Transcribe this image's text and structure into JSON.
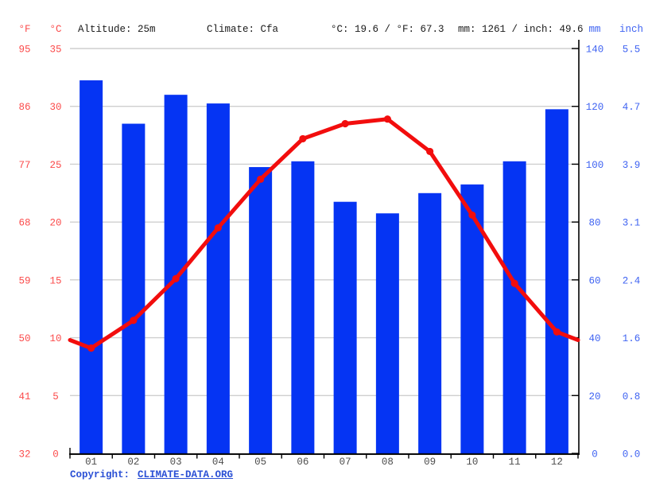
{
  "header": {
    "f_unit": "°F",
    "c_unit": "°C",
    "altitude": "Altitude: 25m",
    "climate": "Climate: Cfa",
    "temp_summary": "°C: 19.6 / °F: 67.3",
    "precip_summary": "mm: 1261 / inch: 49.6",
    "mm_unit": "mm",
    "inch_unit": "inch"
  },
  "footer": {
    "copyright_label": "Copyright:",
    "link_text": "CLIMATE-DATA.ORG",
    "link_color": "#2b50d5"
  },
  "chart_data": {
    "type": "climograph (bar + line)",
    "title": "",
    "categories": [
      "01",
      "02",
      "03",
      "04",
      "05",
      "06",
      "07",
      "08",
      "09",
      "10",
      "11",
      "12"
    ],
    "series": [
      {
        "name": "precipitation",
        "type": "bar",
        "unit": "mm",
        "values": [
          129,
          114,
          124,
          121,
          99,
          101,
          87,
          83,
          90,
          93,
          101,
          119
        ],
        "color": "#0534f3"
      },
      {
        "name": "temperature",
        "type": "line",
        "unit": "°C",
        "values": [
          9.1,
          11.5,
          15.1,
          19.5,
          23.7,
          27.2,
          28.5,
          28.9,
          26.1,
          20.6,
          14.7,
          10.5
        ],
        "color": "#f20d0d"
      }
    ],
    "left_axis": {
      "units": [
        "°F",
        "°C"
      ],
      "f_ticks": [
        "95",
        "86",
        "77",
        "68",
        "59",
        "50",
        "41",
        "32"
      ],
      "c_ticks": [
        "35",
        "30",
        "25",
        "20",
        "15",
        "10",
        "5",
        "0"
      ],
      "range_c": [
        0,
        35
      ],
      "label_color": "#fb4b4b"
    },
    "right_axis": {
      "units": [
        "mm",
        "inch"
      ],
      "mm_ticks": [
        "140",
        "120",
        "100",
        "80",
        "60",
        "40",
        "20",
        "0"
      ],
      "inch_ticks": [
        "5.5",
        "4.7",
        "3.9",
        "3.1",
        "2.4",
        "1.6",
        "0.8",
        "0.0"
      ],
      "range_mm": [
        0,
        140
      ],
      "label_color": "#3f63f2"
    },
    "x_axis": {
      "label_color": "#4d4d4d"
    },
    "grid": true,
    "gridline_color": "#cfcfcf",
    "annual_mean_temp_c": 19.6,
    "annual_mean_temp_f": 67.3,
    "annual_precip_mm": 1261,
    "annual_precip_inch": 49.6,
    "legend_position": "none"
  }
}
